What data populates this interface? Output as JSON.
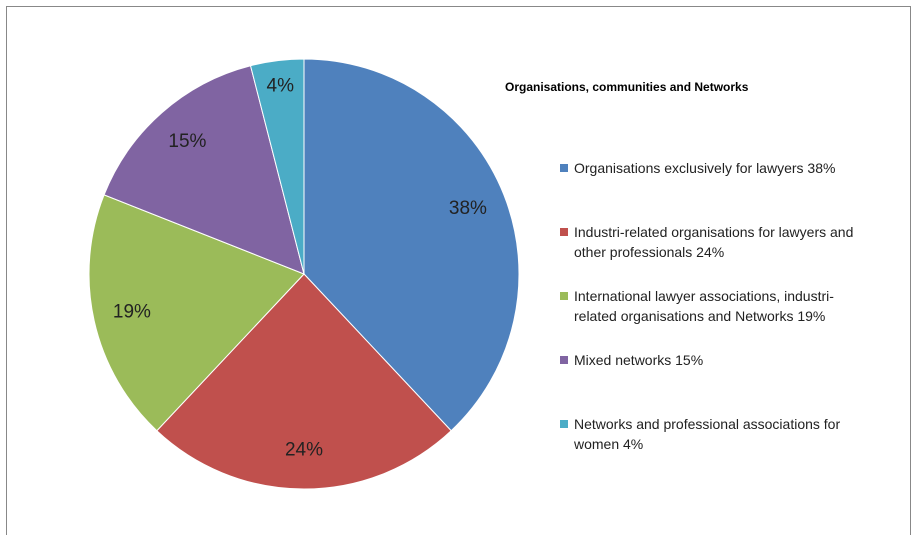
{
  "chart_data": {
    "type": "pie",
    "title": "Organisations, communities and Networks",
    "categories": [
      "Organisations exclusively for lawyers 38%",
      "Industri-related organisations for lawyers and other professionals 24%",
      "International lawyer associations, industri-related organisations and Networks 19%",
      "Mixed networks 15%",
      "Networks and professional associations for women 4%"
    ],
    "values": [
      38,
      24,
      19,
      15,
      4
    ],
    "value_labels": [
      "38%",
      "24%",
      "19%",
      "15%",
      "4%"
    ],
    "colors": [
      "#4f81bd",
      "#c0504d",
      "#9bbb59",
      "#8064a2",
      "#4bacc6"
    ],
    "legend": "right"
  }
}
